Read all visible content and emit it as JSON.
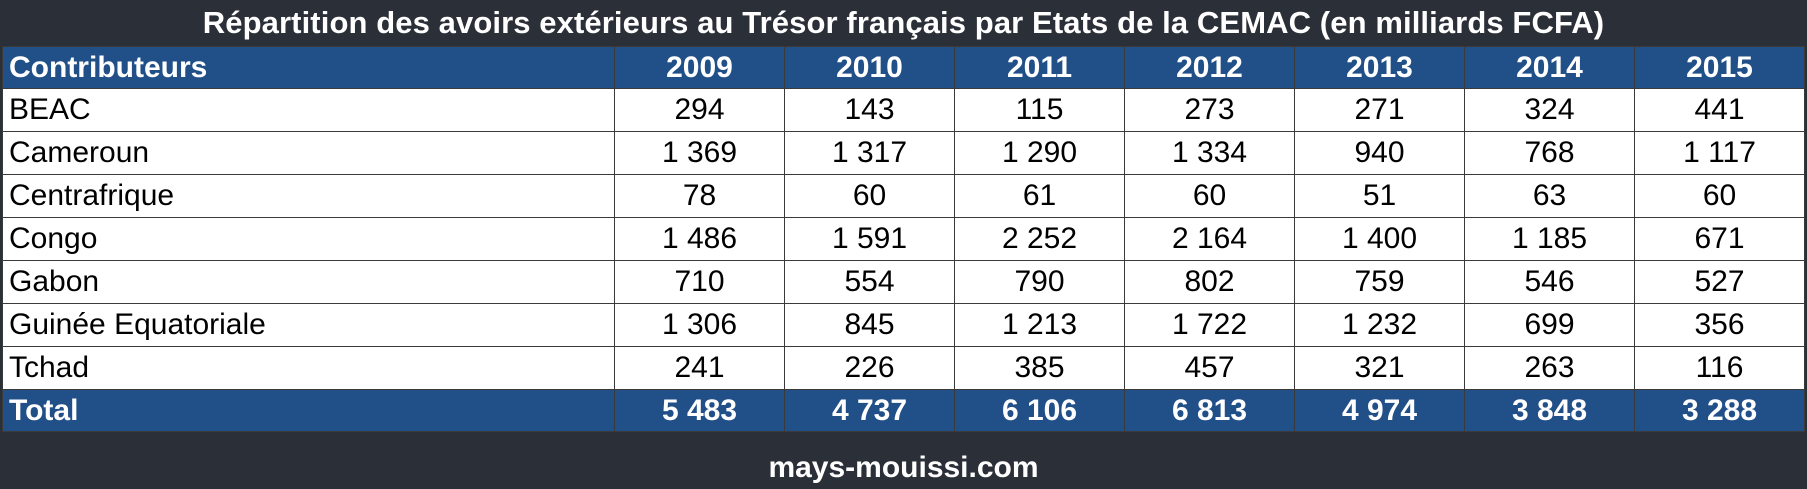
{
  "chart_data": {
    "type": "table",
    "title": "Répartition des avoirs extérieurs au Trésor français par Etats de la CEMAC (en milliards FCFA)",
    "header_label": "Contributeurs",
    "years": [
      "2009",
      "2010",
      "2011",
      "2012",
      "2013",
      "2014",
      "2015"
    ],
    "rows": [
      {
        "name": "BEAC",
        "values": [
          "294",
          "143",
          "115",
          "273",
          "271",
          "324",
          "441"
        ]
      },
      {
        "name": "Cameroun",
        "values": [
          "1 369",
          "1 317",
          "1 290",
          "1 334",
          "940",
          "768",
          "1 117"
        ]
      },
      {
        "name": "Centrafrique",
        "values": [
          "78",
          "60",
          "61",
          "60",
          "51",
          "63",
          "60"
        ]
      },
      {
        "name": "Congo",
        "values": [
          "1 486",
          "1 591",
          "2 252",
          "2 164",
          "1 400",
          "1 185",
          "671"
        ]
      },
      {
        "name": "Gabon",
        "values": [
          "710",
          "554",
          "790",
          "802",
          "759",
          "546",
          "527"
        ]
      },
      {
        "name": "Guinée Equatoriale",
        "values": [
          "1 306",
          "845",
          "1 213",
          "1 722",
          "1 232",
          "699",
          "356"
        ]
      },
      {
        "name": "Tchad",
        "values": [
          "241",
          "226",
          "385",
          "457",
          "321",
          "263",
          "116"
        ]
      }
    ],
    "total": {
      "name": "Total",
      "values": [
        "5 483",
        "4 737",
        "6 106",
        "6 813",
        "4 974",
        "3 848",
        "3 288"
      ]
    }
  },
  "footer": "mays-mouissi.com",
  "colors": {
    "background": "#2b2f38",
    "header_fill": "#215089",
    "cell_fill": "#ffffff"
  }
}
